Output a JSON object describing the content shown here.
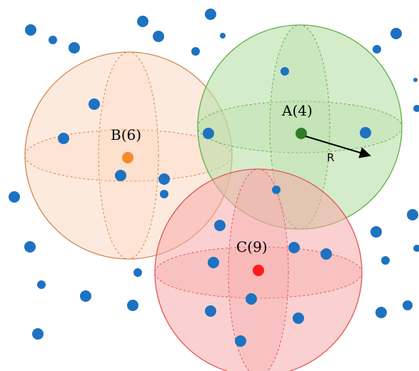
{
  "labels": {
    "a": "A(4)",
    "b": "B(6)",
    "c": "C(9)",
    "radius": "R"
  },
  "colors": {
    "sphere_a_fill": "#b9dfa8",
    "sphere_a_stroke": "#5fae4a",
    "sphere_b_fill": "#fbd9c2",
    "sphere_b_stroke": "#d2844f",
    "sphere_c_fill": "#f7a9a9",
    "sphere_c_stroke": "#e35353",
    "center_a": "#2e7d24",
    "center_b": "#f58a2c",
    "center_c": "#ff1a1a",
    "point": "#1d72c2"
  }
}
